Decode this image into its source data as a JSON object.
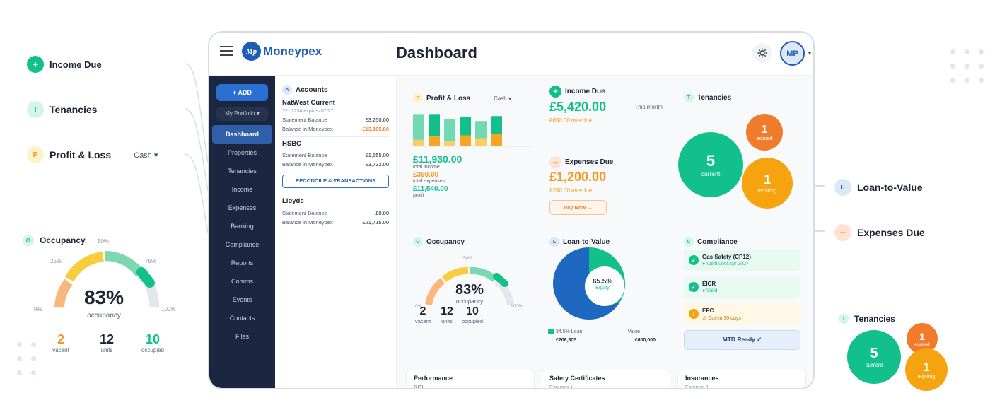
{
  "left": {
    "income_due": {
      "icon": "+",
      "label": "Income Due"
    },
    "tenancies": {
      "icon": "T",
      "label": "Tenancies"
    },
    "pl": {
      "icon": "P",
      "label": "Profit & Loss",
      "cash": "Cash"
    },
    "occupancy": {
      "icon": "O",
      "label": "Occupancy",
      "pct": "83%",
      "sub": "occupancy",
      "ticks": [
        "0%",
        "25%",
        "50%",
        "75%",
        "100%"
      ],
      "value_fraction": 0.83,
      "stats": [
        {
          "n": "2",
          "l": "vacant"
        },
        {
          "n": "12",
          "l": "units"
        },
        {
          "n": "10",
          "l": "occupied"
        }
      ]
    }
  },
  "right": {
    "ltv": {
      "icon": "L",
      "label": "Loan-to-Value"
    },
    "expenses": {
      "icon": "−",
      "label": "Expenses Due"
    },
    "tenancies": {
      "icon": "T",
      "label": "Tenancies",
      "current_n": "5",
      "current_l": "current",
      "expired_n": "1",
      "expired_l": "expired",
      "expiring_n": "1",
      "expiring_l": "expiring"
    }
  },
  "topbar": {
    "logo": "Moneypex",
    "title": "Dashboard",
    "avatar": "MP"
  },
  "sidebar": {
    "add": "+ ADD",
    "portfolio": "My Portfolio",
    "items": [
      "Dashboard",
      "Properties",
      "Tenancies",
      "Income",
      "Expenses",
      "Banking",
      "Compliance",
      "Reports",
      "Comms",
      "Events",
      "Contacts",
      "Files"
    ]
  },
  "accounts": {
    "icon": "A",
    "title": "Accounts",
    "natwest": {
      "name": "NatWest Current",
      "sub": "**** 1234 expires 07/27",
      "sb_l": "Statement Balance",
      "sb_v": "£3,250.00",
      "bm_l": "Balance in Moneypex",
      "bm_v": "-£13,105.80"
    },
    "hsbc": {
      "name": "HSBC",
      "sb_l": "Statement Balance",
      "sb_v": "£1,655.00",
      "bm_l": "Balance in Moneypex",
      "bm_v": "£3,732.00"
    },
    "reconcile": "RECONCILE & TRANSACTIONS",
    "lloyds": {
      "name": "Lloyds",
      "sb_l": "Statement Balance",
      "sb_v": "£0.00",
      "bm_l": "Balance in Moneypex",
      "bm_v": "£21,715.00"
    }
  },
  "pl": {
    "icon": "P",
    "title": "Profit & Loss",
    "cash": "Cash",
    "income": "£11,930.00",
    "income_l": "total income",
    "expenses": "£390.00",
    "expenses_l": "total expenses",
    "profit": "£11,540.00",
    "profit_l": "profit"
  },
  "chart_data": {
    "type": "bar",
    "series": [
      {
        "values": [
          0.77,
          0.77,
          0.65,
          0.7,
          0.6,
          0.72
        ],
        "color": "#72d9b0"
      },
      {
        "values": [
          0.14,
          0.22,
          0.1,
          0.25,
          0.18,
          0.29
        ],
        "color": "#f5a623"
      }
    ]
  },
  "income": {
    "icon": "+",
    "title": "Income Due",
    "amount": "£5,420.00",
    "period": "This month",
    "overdue": "£650.00 overdue"
  },
  "expenses": {
    "icon": "−",
    "title": "Expenses Due",
    "amount": "£1,200.00",
    "overdue": "£280.00 overdue",
    "pay": "Pay Now →"
  },
  "tenancies": {
    "icon": "T",
    "title": "Tenancies",
    "current_n": "5",
    "current_l": "current",
    "expired_n": "1",
    "expired_l": "expired",
    "expiring_n": "1",
    "expiring_l": "expiring"
  },
  "occupancy": {
    "icon": "O",
    "title": "Occupancy",
    "pct": "83%",
    "sub": "occupancy",
    "t0": "0%",
    "t50": "50%",
    "t100": "100%",
    "value_fraction": 0.83,
    "stats": [
      {
        "n": "2",
        "l": "vacant"
      },
      {
        "n": "12",
        "l": "units"
      },
      {
        "n": "10",
        "l": "occupied"
      }
    ]
  },
  "ltv": {
    "icon": "L",
    "title": "Loan-to-Value",
    "pct": "65.5%",
    "equity": "Equity",
    "loan_l": "34.5% Loan",
    "loan_v": "£206,805",
    "value_l": "Value",
    "value_v": "£600,000",
    "equity_fraction": 0.655
  },
  "compliance": {
    "icon": "C",
    "title": "Compliance",
    "items": [
      {
        "name": "Gas Safety (CP12)",
        "status": "● Valid until Apr 2027"
      },
      {
        "name": "EICR",
        "status": "● Valid"
      },
      {
        "name": "EPC",
        "status": "⚠ Due in 30 days"
      }
    ],
    "mtd": "MTD Ready ✓"
  },
  "bottom": {
    "performance": {
      "title": "Performance",
      "sub": "ROI"
    },
    "safety": {
      "title": "Safety Certificates",
      "sub": "Expiring 1"
    },
    "insurances": {
      "title": "Insurances",
      "sub": "Expiring 1"
    }
  },
  "colors": {
    "green": "#11c08a",
    "orange": "#f39a1e",
    "blue": "#1e68c2",
    "navy": "#1b2740"
  }
}
